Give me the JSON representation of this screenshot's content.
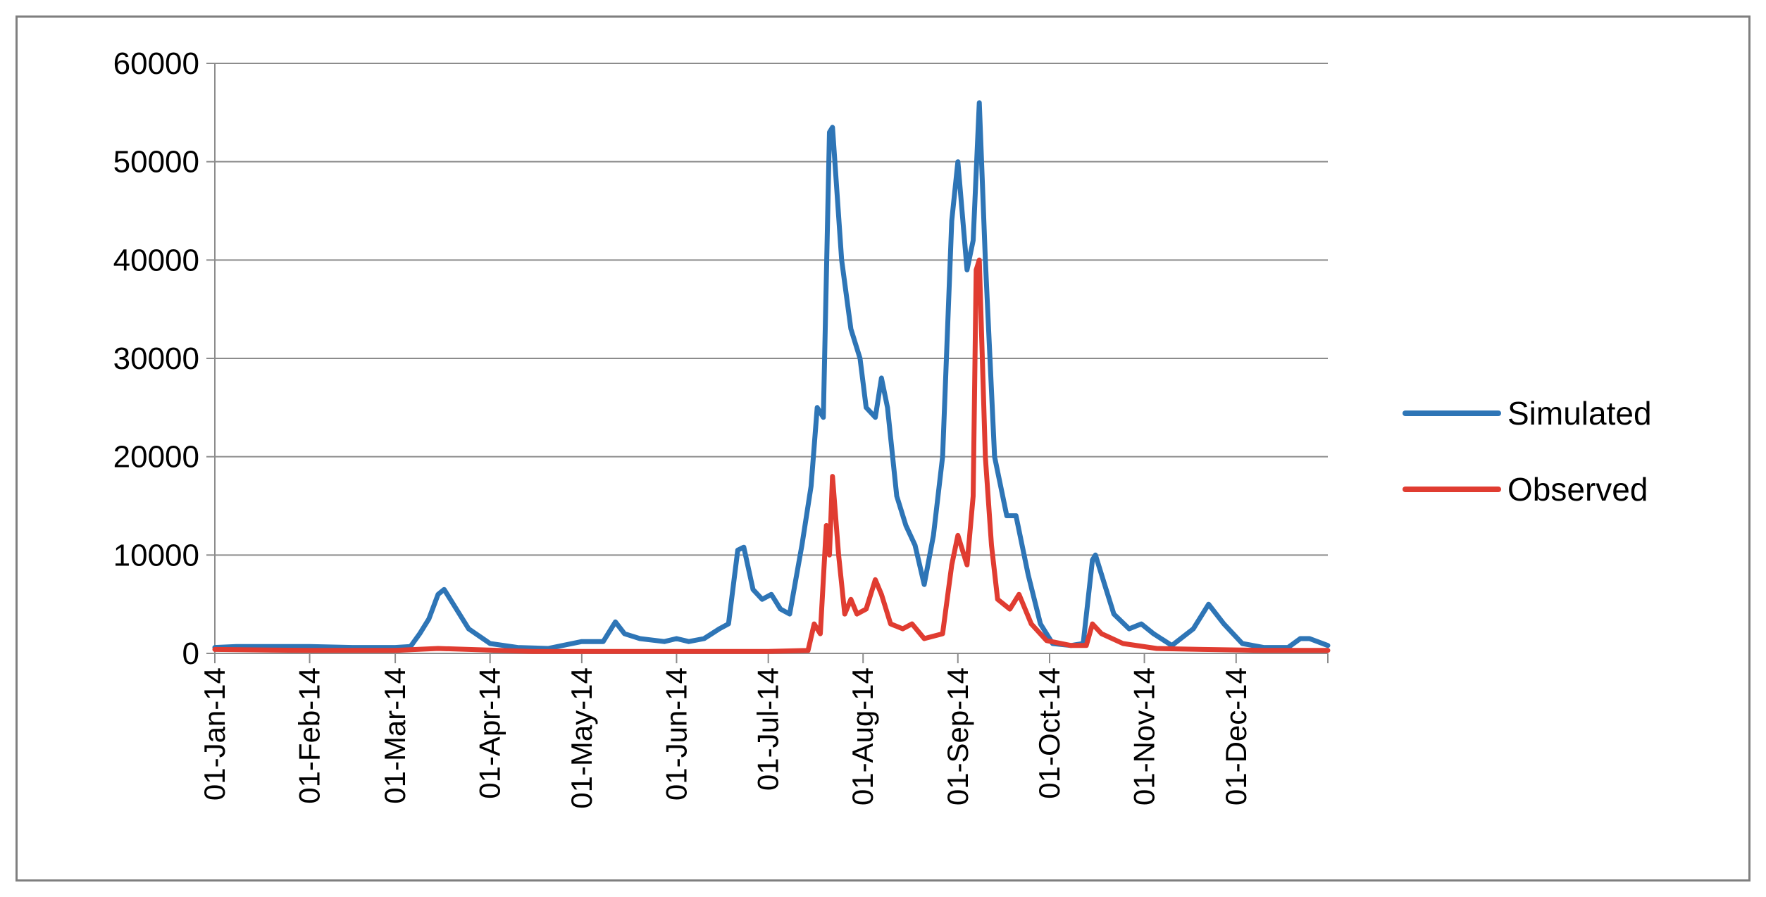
{
  "chart_data": {
    "type": "line",
    "title": "",
    "xlabel": "",
    "ylabel": "",
    "ylim": [
      0,
      60000
    ],
    "yticks": [
      0,
      10000,
      20000,
      30000,
      40000,
      50000,
      60000
    ],
    "xlim": [
      "2014-01-01",
      "2014-12-31"
    ],
    "xticks": [
      {
        "date": "2014-01-01",
        "label": "01-Jan-14"
      },
      {
        "date": "2014-02-01",
        "label": "01-Feb-14"
      },
      {
        "date": "2014-03-01",
        "label": "01-Mar-14"
      },
      {
        "date": "2014-04-01",
        "label": "01-Apr-14"
      },
      {
        "date": "2014-05-01",
        "label": "01-May-14"
      },
      {
        "date": "2014-06-01",
        "label": "01-Jun-14"
      },
      {
        "date": "2014-07-01",
        "label": "01-Jul-14"
      },
      {
        "date": "2014-08-01",
        "label": "01-Aug-14"
      },
      {
        "date": "2014-09-01",
        "label": "01-Sep-14"
      },
      {
        "date": "2014-10-01",
        "label": "01-Oct-14"
      },
      {
        "date": "2014-11-01",
        "label": "01-Nov-14"
      },
      {
        "date": "2014-12-01",
        "label": "01-Dec-14"
      }
    ],
    "grid": true,
    "legend_position": "right",
    "series": [
      {
        "name": "Simulated",
        "color": "#2e75b6",
        "points": [
          [
            "2014-01-01",
            600
          ],
          [
            "2014-01-08",
            700
          ],
          [
            "2014-01-20",
            700
          ],
          [
            "2014-02-01",
            700
          ],
          [
            "2014-02-15",
            600
          ],
          [
            "2014-03-01",
            600
          ],
          [
            "2014-03-06",
            700
          ],
          [
            "2014-03-09",
            2000
          ],
          [
            "2014-03-12",
            3500
          ],
          [
            "2014-03-15",
            6000
          ],
          [
            "2014-03-17",
            6500
          ],
          [
            "2014-03-20",
            5000
          ],
          [
            "2014-03-25",
            2500
          ],
          [
            "2014-04-01",
            1000
          ],
          [
            "2014-04-10",
            600
          ],
          [
            "2014-04-20",
            500
          ],
          [
            "2014-05-01",
            1200
          ],
          [
            "2014-05-08",
            1200
          ],
          [
            "2014-05-12",
            3200
          ],
          [
            "2014-05-15",
            2000
          ],
          [
            "2014-05-20",
            1500
          ],
          [
            "2014-05-28",
            1200
          ],
          [
            "2014-06-01",
            1500
          ],
          [
            "2014-06-05",
            1200
          ],
          [
            "2014-06-10",
            1500
          ],
          [
            "2014-06-15",
            2500
          ],
          [
            "2014-06-18",
            3000
          ],
          [
            "2014-06-21",
            10500
          ],
          [
            "2014-06-23",
            10800
          ],
          [
            "2014-06-26",
            6500
          ],
          [
            "2014-06-29",
            5500
          ],
          [
            "2014-07-02",
            6000
          ],
          [
            "2014-07-05",
            4500
          ],
          [
            "2014-07-08",
            4000
          ],
          [
            "2014-07-12",
            11000
          ],
          [
            "2014-07-15",
            17000
          ],
          [
            "2014-07-17",
            25000
          ],
          [
            "2014-07-19",
            24000
          ],
          [
            "2014-07-21",
            53000
          ],
          [
            "2014-07-22",
            53500
          ],
          [
            "2014-07-25",
            40000
          ],
          [
            "2014-07-28",
            33000
          ],
          [
            "2014-07-31",
            30000
          ],
          [
            "2014-08-02",
            25000
          ],
          [
            "2014-08-05",
            24000
          ],
          [
            "2014-08-07",
            28000
          ],
          [
            "2014-08-09",
            25000
          ],
          [
            "2014-08-12",
            16000
          ],
          [
            "2014-08-15",
            13000
          ],
          [
            "2014-08-18",
            11000
          ],
          [
            "2014-08-21",
            7000
          ],
          [
            "2014-08-24",
            12000
          ],
          [
            "2014-08-27",
            20000
          ],
          [
            "2014-08-30",
            44000
          ],
          [
            "2014-09-01",
            50000
          ],
          [
            "2014-09-04",
            39000
          ],
          [
            "2014-09-06",
            42000
          ],
          [
            "2014-09-08",
            56000
          ],
          [
            "2014-09-10",
            40000
          ],
          [
            "2014-09-13",
            20000
          ],
          [
            "2014-09-17",
            14000
          ],
          [
            "2014-09-20",
            14000
          ],
          [
            "2014-09-24",
            8000
          ],
          [
            "2014-09-28",
            3000
          ],
          [
            "2014-10-02",
            1000
          ],
          [
            "2014-10-08",
            800
          ],
          [
            "2014-10-12",
            1000
          ],
          [
            "2014-10-15",
            9500
          ],
          [
            "2014-10-16",
            10000
          ],
          [
            "2014-10-19",
            7000
          ],
          [
            "2014-10-22",
            4000
          ],
          [
            "2014-10-27",
            2500
          ],
          [
            "2014-10-31",
            3000
          ],
          [
            "2014-11-04",
            2000
          ],
          [
            "2014-11-10",
            800
          ],
          [
            "2014-11-17",
            2500
          ],
          [
            "2014-11-22",
            5000
          ],
          [
            "2014-11-27",
            3000
          ],
          [
            "2014-12-03",
            1000
          ],
          [
            "2014-12-10",
            600
          ],
          [
            "2014-12-18",
            600
          ],
          [
            "2014-12-22",
            1500
          ],
          [
            "2014-12-25",
            1500
          ],
          [
            "2014-12-31",
            800
          ]
        ]
      },
      {
        "name": "Observed",
        "color": "#e03c31",
        "points": [
          [
            "2014-01-01",
            400
          ],
          [
            "2014-02-01",
            300
          ],
          [
            "2014-03-01",
            300
          ],
          [
            "2014-03-15",
            500
          ],
          [
            "2014-03-25",
            400
          ],
          [
            "2014-04-15",
            200
          ],
          [
            "2014-05-15",
            200
          ],
          [
            "2014-06-15",
            200
          ],
          [
            "2014-07-01",
            200
          ],
          [
            "2014-07-14",
            300
          ],
          [
            "2014-07-16",
            3000
          ],
          [
            "2014-07-18",
            2000
          ],
          [
            "2014-07-20",
            13000
          ],
          [
            "2014-07-21",
            10000
          ],
          [
            "2014-07-22",
            18000
          ],
          [
            "2014-07-24",
            10000
          ],
          [
            "2014-07-26",
            4000
          ],
          [
            "2014-07-28",
            5500
          ],
          [
            "2014-07-30",
            4000
          ],
          [
            "2014-08-02",
            4500
          ],
          [
            "2014-08-05",
            7500
          ],
          [
            "2014-08-07",
            6000
          ],
          [
            "2014-08-10",
            3000
          ],
          [
            "2014-08-14",
            2500
          ],
          [
            "2014-08-17",
            3000
          ],
          [
            "2014-08-21",
            1500
          ],
          [
            "2014-08-27",
            2000
          ],
          [
            "2014-08-30",
            9000
          ],
          [
            "2014-09-01",
            12000
          ],
          [
            "2014-09-04",
            9000
          ],
          [
            "2014-09-06",
            16000
          ],
          [
            "2014-09-07",
            39000
          ],
          [
            "2014-09-08",
            40000
          ],
          [
            "2014-09-10",
            20000
          ],
          [
            "2014-09-12",
            11000
          ],
          [
            "2014-09-14",
            5500
          ],
          [
            "2014-09-18",
            4500
          ],
          [
            "2014-09-21",
            6000
          ],
          [
            "2014-09-25",
            3000
          ],
          [
            "2014-09-30",
            1300
          ],
          [
            "2014-10-08",
            800
          ],
          [
            "2014-10-13",
            800
          ],
          [
            "2014-10-15",
            3000
          ],
          [
            "2014-10-18",
            2000
          ],
          [
            "2014-10-25",
            1000
          ],
          [
            "2014-11-05",
            500
          ],
          [
            "2014-11-20",
            400
          ],
          [
            "2014-12-10",
            300
          ],
          [
            "2014-12-31",
            300
          ]
        ]
      }
    ]
  }
}
